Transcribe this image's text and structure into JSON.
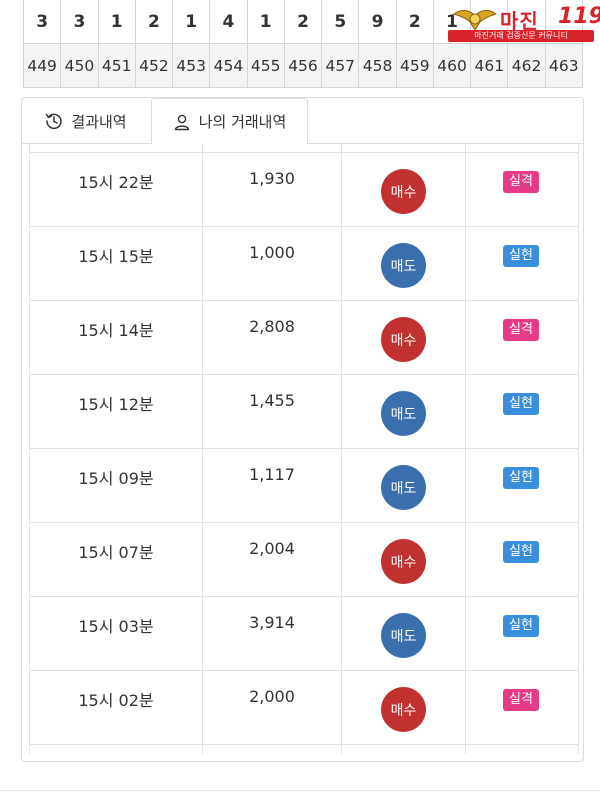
{
  "grid": {
    "values": [
      "3",
      "3",
      "1",
      "2",
      "1",
      "4",
      "1",
      "2",
      "5",
      "9",
      "2",
      "1",
      "",
      "",
      ""
    ],
    "rounds": [
      "449",
      "450",
      "451",
      "452",
      "453",
      "454",
      "455",
      "456",
      "457",
      "458",
      "459",
      "460",
      "461",
      "462",
      "463"
    ]
  },
  "logo": {
    "brand": "마진",
    "brand_num": "119",
    "tagline": "마진거래 검증신문 커뮤니티"
  },
  "tabs": [
    {
      "label": "결과내역",
      "icon": "history-icon",
      "active": false
    },
    {
      "label": "나의 거래내역",
      "icon": "user-icon",
      "active": true
    }
  ],
  "trades": [
    {
      "time": "15시 22분",
      "amount": "1,930",
      "side": "매수",
      "side_type": "buy",
      "result": "실격",
      "result_type": "fail"
    },
    {
      "time": "15시 15분",
      "amount": "1,000",
      "side": "매도",
      "side_type": "sell",
      "result": "실현",
      "result_type": "ok"
    },
    {
      "time": "15시 14분",
      "amount": "2,808",
      "side": "매수",
      "side_type": "buy",
      "result": "실격",
      "result_type": "fail"
    },
    {
      "time": "15시 12분",
      "amount": "1,455",
      "side": "매도",
      "side_type": "sell",
      "result": "실현",
      "result_type": "ok"
    },
    {
      "time": "15시 09분",
      "amount": "1,117",
      "side": "매도",
      "side_type": "sell",
      "result": "실현",
      "result_type": "ok"
    },
    {
      "time": "15시 07분",
      "amount": "2,004",
      "side": "매수",
      "side_type": "buy",
      "result": "실현",
      "result_type": "ok"
    },
    {
      "time": "15시 03분",
      "amount": "3,914",
      "side": "매도",
      "side_type": "sell",
      "result": "실현",
      "result_type": "ok"
    },
    {
      "time": "15시 02분",
      "amount": "2,000",
      "side": "매수",
      "side_type": "buy",
      "result": "실격",
      "result_type": "fail"
    }
  ],
  "colors": {
    "buy": "#c0312f",
    "sell": "#3a6fad",
    "fail": "#e63a86",
    "ok": "#3a8fdc",
    "brand": "#d8232a"
  }
}
